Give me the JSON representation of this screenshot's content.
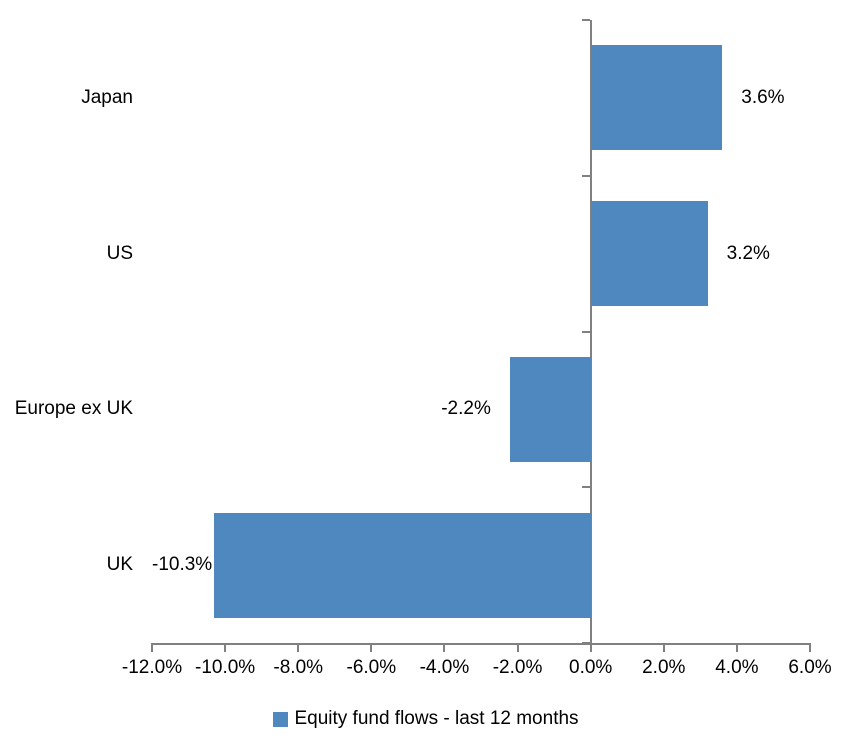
{
  "chart_data": {
    "type": "bar",
    "orientation": "horizontal",
    "title": "",
    "categories": [
      "Japan",
      "US",
      "Europe ex UK",
      "UK"
    ],
    "series": [
      {
        "name": "Equity fund flows - last 12 months",
        "values": [
          3.6,
          3.2,
          -2.2,
          -10.3
        ],
        "value_labels": [
          "3.6%",
          "3.2%",
          "-2.2%",
          "-10.3%"
        ]
      }
    ],
    "xlim": [
      -12,
      6
    ],
    "x_ticks": [
      {
        "v": -12,
        "label": "-12.0%"
      },
      {
        "v": -10,
        "label": "-10.0%"
      },
      {
        "v": -8,
        "label": "-8.0%"
      },
      {
        "v": -6,
        "label": "-6.0%"
      },
      {
        "v": -4,
        "label": "-4.0%"
      },
      {
        "v": -2,
        "label": "-2.0%"
      },
      {
        "v": 0,
        "label": "0.0%"
      },
      {
        "v": 2,
        "label": "2.0%"
      },
      {
        "v": 4,
        "label": "4.0%"
      },
      {
        "v": 6,
        "label": "6.0%"
      }
    ],
    "grid": false,
    "legend": {
      "position": "bottom",
      "label": "Equity fund flows - last 12 months"
    },
    "colors": {
      "bar": "#4E88BE",
      "axis": "#808080",
      "text": "#000000",
      "background": "#FFFFFF"
    }
  }
}
